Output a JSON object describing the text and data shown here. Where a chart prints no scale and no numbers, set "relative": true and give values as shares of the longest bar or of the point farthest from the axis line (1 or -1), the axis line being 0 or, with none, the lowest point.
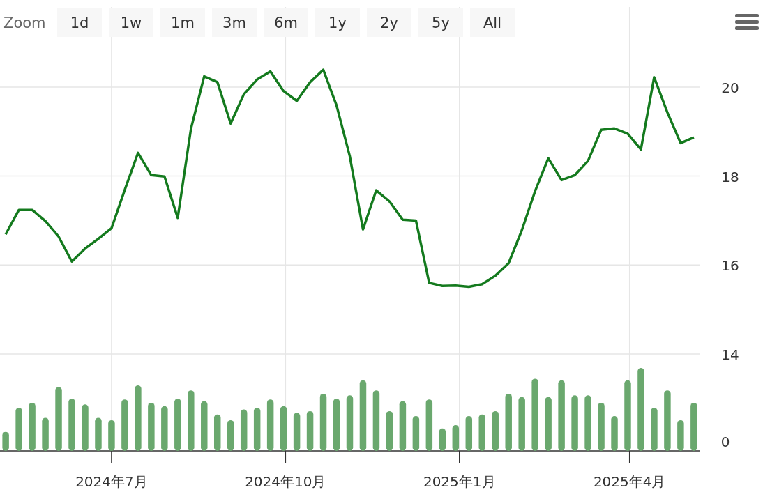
{
  "chart_data": [
    {
      "type": "line",
      "annotations": [
        "Zoom",
        "1d",
        "1w",
        "1m",
        "3m",
        "6m",
        "1y",
        "2y",
        "5y",
        "All"
      ],
      "x": [
        "2024-05-06",
        "2024-05-13",
        "2024-05-20",
        "2024-05-27",
        "2024-06-03",
        "2024-06-10",
        "2024-06-17",
        "2024-06-24",
        "2024-07-01",
        "2024-07-08",
        "2024-07-15",
        "2024-07-22",
        "2024-07-29",
        "2024-08-05",
        "2024-08-12",
        "2024-08-19",
        "2024-08-26",
        "2024-09-02",
        "2024-09-09",
        "2024-09-16",
        "2024-09-23",
        "2024-09-30",
        "2024-10-07",
        "2024-10-14",
        "2024-10-21",
        "2024-10-28",
        "2024-11-04",
        "2024-11-11",
        "2024-11-18",
        "2024-11-25",
        "2024-12-02",
        "2024-12-09",
        "2024-12-16",
        "2024-12-23",
        "2024-12-30",
        "2025-01-06",
        "2025-01-13",
        "2025-01-20",
        "2025-01-27",
        "2025-02-03",
        "2025-02-10",
        "2025-02-17",
        "2025-02-24",
        "2025-03-03",
        "2025-03-10",
        "2025-03-17",
        "2025-03-24",
        "2025-03-31",
        "2025-04-07",
        "2025-04-14",
        "2025-04-21",
        "2025-04-28",
        "2025-05-05"
      ],
      "series": [
        {
          "color": "#147a1e",
          "values": [
            16.69,
            17.24,
            17.24,
            16.99,
            16.64,
            16.08,
            16.37,
            16.59,
            16.83,
            17.69,
            18.52,
            18.02,
            17.99,
            17.06,
            19.06,
            20.24,
            20.11,
            19.18,
            19.84,
            20.17,
            20.35,
            19.91,
            19.69,
            20.11,
            20.39,
            19.59,
            18.45,
            16.8,
            17.68,
            17.43,
            17.02,
            17.0,
            15.6,
            15.53,
            15.54,
            15.51,
            15.57,
            15.76,
            16.04,
            16.78,
            17.66,
            18.4,
            17.91,
            18.02,
            18.34,
            19.04,
            19.07,
            18.95,
            18.6,
            20.22,
            19.43,
            18.74,
            18.87
          ]
        }
      ],
      "xlim": [
        "2024-05-03",
        "2025-05-08"
      ],
      "xticks": [
        {
          "value": "2024-07-01",
          "label": null
        },
        {
          "value": "2024-10-01",
          "label": null
        },
        {
          "value": "2025-01-01",
          "label": null
        },
        {
          "value": "2025-04-01",
          "label": null
        }
      ],
      "ylim": [
        14,
        21.8
      ],
      "yticks": [
        14,
        16,
        18,
        20
      ],
      "grid": true,
      "tick_labels": "y",
      "line_style": "solid",
      "marker": "none"
    },
    {
      "type": "bar",
      "relative": true,
      "annotations": [
        "0"
      ],
      "x": [
        "2024-05-06",
        "2024-05-13",
        "2024-05-20",
        "2024-05-27",
        "2024-06-03",
        "2024-06-10",
        "2024-06-17",
        "2024-06-24",
        "2024-07-01",
        "2024-07-08",
        "2024-07-15",
        "2024-07-22",
        "2024-07-29",
        "2024-08-05",
        "2024-08-12",
        "2024-08-19",
        "2024-08-26",
        "2024-09-02",
        "2024-09-09",
        "2024-09-16",
        "2024-09-23",
        "2024-09-30",
        "2024-10-07",
        "2024-10-14",
        "2024-10-21",
        "2024-10-28",
        "2024-11-04",
        "2024-11-11",
        "2024-11-18",
        "2024-11-25",
        "2024-12-02",
        "2024-12-09",
        "2024-12-16",
        "2024-12-23",
        "2024-12-30",
        "2025-01-06",
        "2025-01-13",
        "2025-01-20",
        "2025-01-27",
        "2025-02-03",
        "2025-02-10",
        "2025-02-17",
        "2025-02-24",
        "2025-03-03",
        "2025-03-10",
        "2025-03-17",
        "2025-03-24",
        "2025-03-31",
        "2025-04-07",
        "2025-04-14",
        "2025-04-21",
        "2025-04-28",
        "2025-05-05"
      ],
      "series": [
        {
          "color": "#6aa86e",
          "values": [
            0.23,
            0.52,
            0.58,
            0.4,
            0.77,
            0.63,
            0.56,
            0.4,
            0.37,
            0.62,
            0.79,
            0.58,
            0.54,
            0.63,
            0.73,
            0.6,
            0.44,
            0.37,
            0.5,
            0.52,
            0.62,
            0.54,
            0.46,
            0.48,
            0.69,
            0.63,
            0.67,
            0.85,
            0.73,
            0.48,
            0.6,
            0.42,
            0.62,
            0.27,
            0.31,
            0.42,
            0.44,
            0.48,
            0.69,
            0.65,
            0.87,
            0.65,
            0.85,
            0.67,
            0.67,
            0.58,
            0.42,
            0.85,
            1,
            0.52,
            0.73,
            0.37,
            0.58
          ]
        }
      ],
      "xlim": [
        "2024-05-03",
        "2025-05-08"
      ],
      "xticks": [
        {
          "value": "2024-07-01",
          "label": "2024年7月"
        },
        {
          "value": "2024-10-01",
          "label": "2024年10月"
        },
        {
          "value": "2025-01-01",
          "label": "2025年1月"
        },
        {
          "value": "2025-04-01",
          "label": "2025年4月"
        }
      ],
      "grid": "x"
    }
  ]
}
